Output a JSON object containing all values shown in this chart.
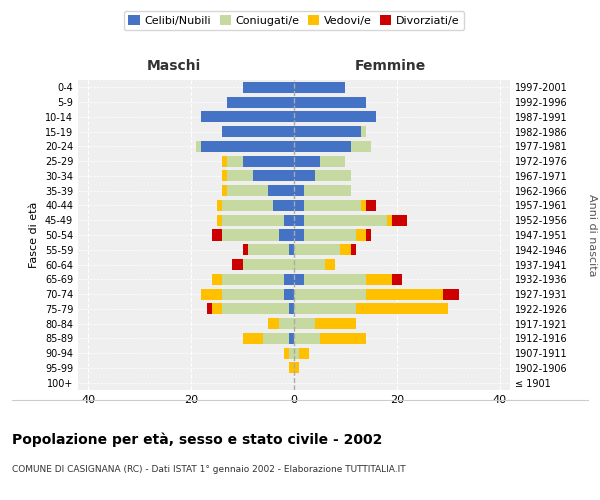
{
  "age_groups": [
    "100+",
    "95-99",
    "90-94",
    "85-89",
    "80-84",
    "75-79",
    "70-74",
    "65-69",
    "60-64",
    "55-59",
    "50-54",
    "45-49",
    "40-44",
    "35-39",
    "30-34",
    "25-29",
    "20-24",
    "15-19",
    "10-14",
    "5-9",
    "0-4"
  ],
  "birth_years": [
    "≤ 1901",
    "1902-1906",
    "1907-1911",
    "1912-1916",
    "1917-1921",
    "1922-1926",
    "1927-1931",
    "1932-1936",
    "1937-1941",
    "1942-1946",
    "1947-1951",
    "1952-1956",
    "1957-1961",
    "1962-1966",
    "1967-1971",
    "1972-1976",
    "1977-1981",
    "1982-1986",
    "1987-1991",
    "1992-1996",
    "1997-2001"
  ],
  "males": {
    "celibi": [
      0,
      0,
      0,
      1,
      0,
      1,
      2,
      2,
      0,
      1,
      3,
      2,
      4,
      5,
      8,
      10,
      18,
      14,
      18,
      13,
      10
    ],
    "coniugati": [
      0,
      0,
      1,
      5,
      3,
      13,
      12,
      12,
      10,
      8,
      11,
      12,
      10,
      8,
      5,
      3,
      1,
      0,
      0,
      0,
      0
    ],
    "vedovi": [
      0,
      1,
      1,
      4,
      2,
      2,
      4,
      2,
      0,
      0,
      0,
      1,
      1,
      1,
      1,
      1,
      0,
      0,
      0,
      0,
      0
    ],
    "divorziati": [
      0,
      0,
      0,
      0,
      0,
      1,
      0,
      0,
      2,
      1,
      2,
      0,
      0,
      0,
      0,
      0,
      0,
      0,
      0,
      0,
      0
    ]
  },
  "females": {
    "nubili": [
      0,
      0,
      0,
      0,
      0,
      0,
      0,
      2,
      0,
      0,
      2,
      2,
      2,
      2,
      4,
      5,
      11,
      13,
      16,
      14,
      10
    ],
    "coniugate": [
      0,
      0,
      1,
      5,
      4,
      12,
      14,
      12,
      6,
      9,
      10,
      16,
      11,
      9,
      7,
      5,
      4,
      1,
      0,
      0,
      0
    ],
    "vedove": [
      0,
      1,
      2,
      9,
      8,
      18,
      15,
      5,
      2,
      2,
      2,
      1,
      1,
      0,
      0,
      0,
      0,
      0,
      0,
      0,
      0
    ],
    "divorziate": [
      0,
      0,
      0,
      0,
      0,
      0,
      3,
      2,
      0,
      1,
      1,
      3,
      2,
      0,
      0,
      0,
      0,
      0,
      0,
      0,
      0
    ]
  },
  "colors": {
    "celibi": "#4472c4",
    "coniugati": "#c5d9a0",
    "vedovi": "#ffc000",
    "divorziati": "#cc0000"
  },
  "title": "Popolazione per età, sesso e stato civile - 2002",
  "subtitle": "COMUNE DI CASIGNANA (RC) - Dati ISTAT 1° gennaio 2002 - Elaborazione TUTTITALIA.IT",
  "ylabel_left": "Fasce di età",
  "ylabel_right": "Anni di nascita",
  "xlabel_left": "Maschi",
  "xlabel_right": "Femmine",
  "xlim": 42,
  "background_color": "#ffffff",
  "axes_bg_color": "#efefef",
  "grid_color": "#ffffff",
  "legend_labels": [
    "Celibi/Nubili",
    "Coniugati/e",
    "Vedovi/e",
    "Divorziati/e"
  ]
}
